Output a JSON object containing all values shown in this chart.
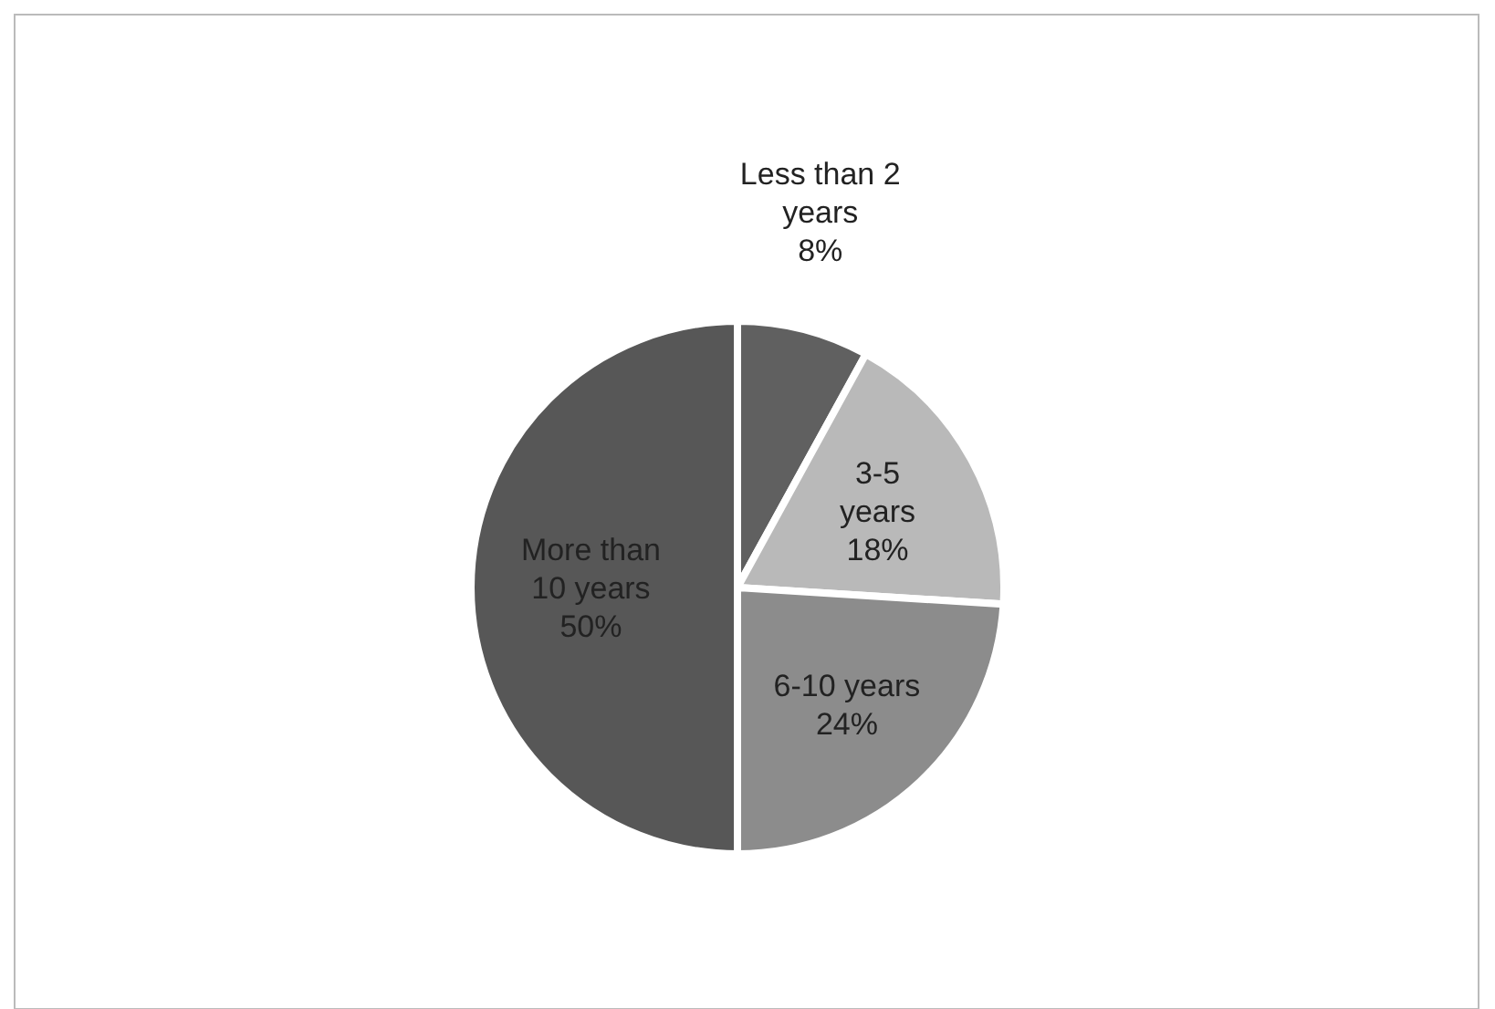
{
  "chart_data": {
    "type": "pie",
    "categories": [
      "Less than 2 years",
      "3-5 years",
      "6-10 years",
      "More than 10 years"
    ],
    "values": [
      8,
      18,
      24,
      50
    ],
    "value_labels": [
      "8%",
      "18%",
      "24%",
      "50%"
    ],
    "colors": [
      "#606060",
      "#b9b9b9",
      "#8c8c8c",
      "#575757"
    ]
  }
}
